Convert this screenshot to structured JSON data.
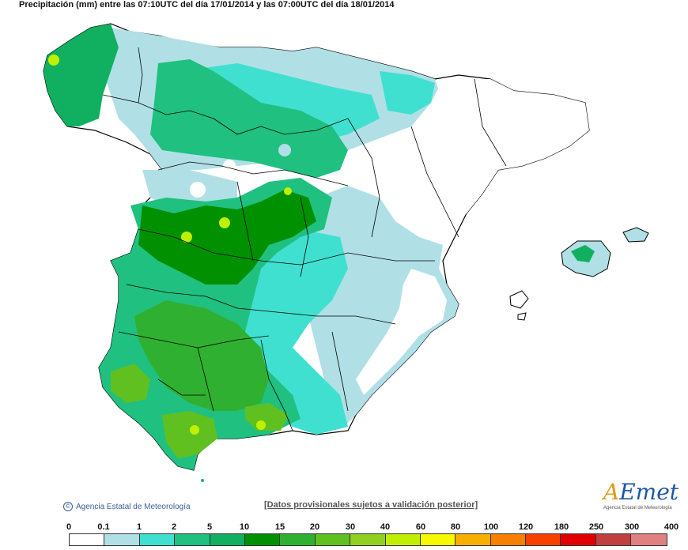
{
  "header": {
    "title": "Precipitación (mm) entre las 07:10UTC del día 17/01/2014 y las 07:00UTC del día 18/01/2014"
  },
  "footer": {
    "copyright_symbol": "©",
    "copyright": "Agencia Estatal de Meteorología",
    "disclaimer": "[Datos provisionales sujetos a validación posterior]"
  },
  "logo": {
    "prefix": "A",
    "rest": "Emet",
    "subtitle": "Agencia Estatal de Meteorología"
  },
  "legend": {
    "labels": [
      "0",
      "0.1",
      "1",
      "2",
      "5",
      "10",
      "15",
      "20",
      "30",
      "40",
      "60",
      "80",
      "100",
      "120",
      "180",
      "250",
      "300",
      "400"
    ],
    "colors": [
      "#ffffff",
      "#b0e0e6",
      "#40e0d0",
      "#20c080",
      "#10b060",
      "#009000",
      "#30b030",
      "#60c020",
      "#90d020",
      "#c0f000",
      "#f8f800",
      "#f8b000",
      "#f88000",
      "#f84000",
      "#e00000",
      "#c04040",
      "#e08080",
      "#f0b0b0"
    ]
  },
  "colors": {
    "sea": "#ffffff",
    "border": "#000000",
    "light_blue": "#b0e0e6",
    "turquoise": "#40e0d0",
    "green_light": "#20c080",
    "green": "#10b060",
    "green_dark": "#009000",
    "green_lime": "#60c020",
    "yellow": "#c0f000"
  }
}
